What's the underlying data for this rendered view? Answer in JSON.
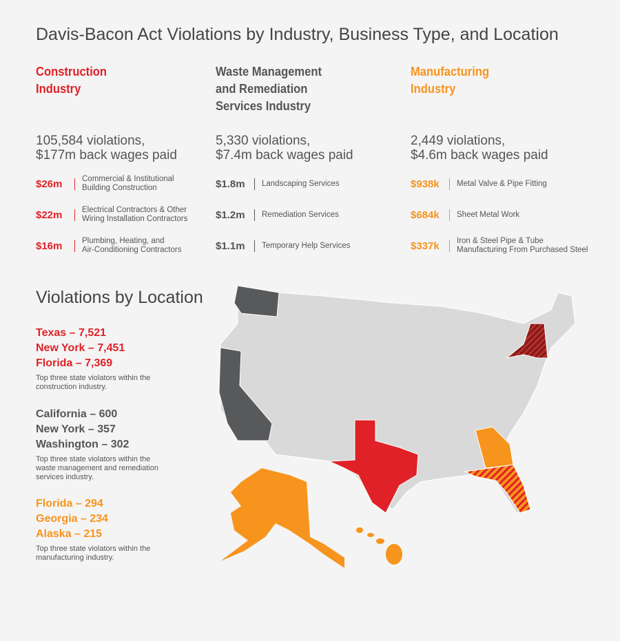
{
  "title": "Davis-Bacon Act Violations by Industry, Business Type, and Location",
  "industries": [
    {
      "heading": [
        "Construction",
        "Industry"
      ],
      "summary": [
        "105,584 violations,",
        "$177m back wages paid"
      ],
      "items": [
        {
          "amount": "$26m",
          "label": [
            "Commercial & Institutional",
            "Building Construction"
          ]
        },
        {
          "amount": "$22m",
          "label": [
            "Electrical Contractors & Other",
            "Wiring Installation Contractors"
          ]
        },
        {
          "amount": "$16m",
          "label": [
            "Plumbing, Heating, and",
            "Air-Conditioning Contractors"
          ]
        }
      ]
    },
    {
      "heading": [
        "Waste Management",
        "and Remediation",
        "Services Industry"
      ],
      "summary": [
        "5,330 violations,",
        "$7.4m back wages paid"
      ],
      "items": [
        {
          "amount": "$1.8m",
          "label": [
            "Landscaping Services"
          ]
        },
        {
          "amount": "$1.2m",
          "label": [
            "Remediation Services"
          ]
        },
        {
          "amount": "$1.1m",
          "label": [
            "Temporary Help Services"
          ]
        }
      ]
    },
    {
      "heading": [
        "Manufacturing",
        "Industry"
      ],
      "summary": [
        "2,449 violations,",
        "$4.6m back wages paid"
      ],
      "items": [
        {
          "amount": "$938k",
          "label": [
            "Metal Valve & Pipe Fitting"
          ]
        },
        {
          "amount": "$684k",
          "label": [
            "Sheet Metal Work"
          ]
        },
        {
          "amount": "$337k",
          "label": [
            "Iron & Steel Pipe & Tube",
            "Manufacturing From Purchased Steel"
          ]
        }
      ]
    }
  ],
  "location": {
    "heading": "Violations by Location",
    "groups": [
      {
        "entries": [
          "Texas – 7,521",
          "New York – 7,451",
          "Florida – 7,369"
        ],
        "note": [
          "Top three state violators within the",
          "construction industry."
        ]
      },
      {
        "entries": [
          "California – 600",
          "New York – 357",
          "Washington – 302"
        ],
        "note": [
          "Top three state violators within the",
          "waste management and remediation",
          "services industry."
        ]
      },
      {
        "entries": [
          "Florida – 294",
          "Georgia – 234",
          "Alaska – 215"
        ],
        "note": [
          "Top three state violators within the",
          "manufacturing industry."
        ]
      }
    ]
  }
}
